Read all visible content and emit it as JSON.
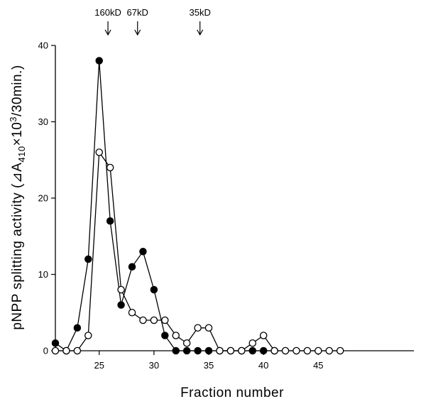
{
  "chart_data": {
    "type": "line",
    "title": "",
    "xlabel": "Fraction number",
    "ylabel_prefix": "pNPP splitting activity (",
    "ylabel_delta": "⊿A",
    "ylabel_sub": "410",
    "ylabel_times": "×10",
    "ylabel_sup": "3",
    "ylabel_suffix": "/30min.)",
    "xlim": [
      21,
      48
    ],
    "ylim": [
      0,
      40
    ],
    "xticks": [
      25,
      30,
      35,
      40,
      45
    ],
    "xtick_labels": [
      "25",
      "30",
      "35",
      "40",
      "45"
    ],
    "yticks": [
      0,
      10,
      20,
      30,
      40
    ],
    "ytick_labels": [
      "0",
      "10",
      "20",
      "30",
      "40"
    ],
    "grid": false,
    "series": [
      {
        "marker": "filled-circle",
        "x": [
          21,
          22,
          23,
          24,
          25,
          26,
          27,
          28,
          29,
          30,
          31,
          32,
          33,
          34,
          35,
          36,
          37,
          38,
          39,
          40,
          41
        ],
        "y": [
          1,
          0,
          3,
          12,
          38,
          17,
          6,
          11,
          13,
          8,
          2,
          0,
          0,
          0,
          0,
          0,
          0,
          0,
          0,
          0,
          0
        ]
      },
      {
        "marker": "open-circle",
        "x": [
          21,
          22,
          23,
          24,
          25,
          26,
          27,
          28,
          29,
          30,
          31,
          32,
          33,
          34,
          35,
          36,
          37,
          38,
          39,
          40,
          41,
          42,
          43,
          44,
          45,
          46,
          47
        ],
        "y": [
          0,
          0,
          0,
          2,
          26,
          24,
          8,
          5,
          4,
          4,
          4,
          2,
          1,
          3,
          3,
          0,
          0,
          0,
          1,
          2,
          0,
          0,
          0,
          0,
          0,
          0,
          0
        ]
      }
    ],
    "annotations": [
      {
        "text": "160kD",
        "x": 25.8
      },
      {
        "text": "67kD",
        "x": 28.5
      },
      {
        "text": "35kD",
        "x": 34.2
      }
    ]
  }
}
